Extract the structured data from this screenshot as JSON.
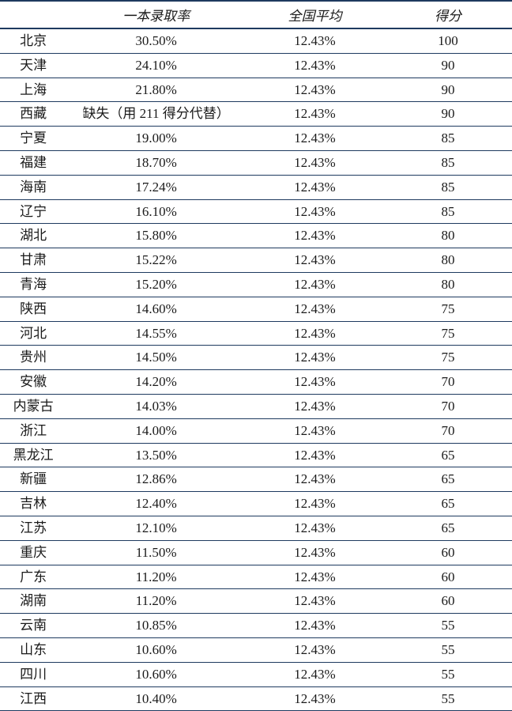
{
  "table": {
    "type": "table",
    "background_color": "#ffffff",
    "text_color": "#1a1a1a",
    "border_color": "#1e3a5f",
    "font_size": 17,
    "columns": [
      {
        "key": "province",
        "label": ""
      },
      {
        "key": "rate",
        "label": "一本录取率"
      },
      {
        "key": "avg",
        "label": "全国平均"
      },
      {
        "key": "score",
        "label": "得分"
      }
    ],
    "rows": [
      {
        "province": "北京",
        "rate": "30.50%",
        "avg": "12.43%",
        "score": "100"
      },
      {
        "province": "天津",
        "rate": "24.10%",
        "avg": "12.43%",
        "score": "90"
      },
      {
        "province": "上海",
        "rate": "21.80%",
        "avg": "12.43%",
        "score": "90"
      },
      {
        "province": "西藏",
        "rate": "缺失（用 211 得分代替）",
        "avg": "12.43%",
        "score": "90"
      },
      {
        "province": "宁夏",
        "rate": "19.00%",
        "avg": "12.43%",
        "score": "85"
      },
      {
        "province": "福建",
        "rate": "18.70%",
        "avg": "12.43%",
        "score": "85"
      },
      {
        "province": "海南",
        "rate": "17.24%",
        "avg": "12.43%",
        "score": "85"
      },
      {
        "province": "辽宁",
        "rate": "16.10%",
        "avg": "12.43%",
        "score": "85"
      },
      {
        "province": "湖北",
        "rate": "15.80%",
        "avg": "12.43%",
        "score": "80"
      },
      {
        "province": "甘肃",
        "rate": "15.22%",
        "avg": "12.43%",
        "score": "80"
      },
      {
        "province": "青海",
        "rate": "15.20%",
        "avg": "12.43%",
        "score": "80"
      },
      {
        "province": "陕西",
        "rate": "14.60%",
        "avg": "12.43%",
        "score": "75"
      },
      {
        "province": "河北",
        "rate": "14.55%",
        "avg": "12.43%",
        "score": "75"
      },
      {
        "province": "贵州",
        "rate": "14.50%",
        "avg": "12.43%",
        "score": "75"
      },
      {
        "province": "安徽",
        "rate": "14.20%",
        "avg": "12.43%",
        "score": "70"
      },
      {
        "province": "内蒙古",
        "rate": "14.03%",
        "avg": "12.43%",
        "score": "70"
      },
      {
        "province": "浙江",
        "rate": "14.00%",
        "avg": "12.43%",
        "score": "70"
      },
      {
        "province": "黑龙江",
        "rate": "13.50%",
        "avg": "12.43%",
        "score": "65"
      },
      {
        "province": "新疆",
        "rate": "12.86%",
        "avg": "12.43%",
        "score": "65"
      },
      {
        "province": "吉林",
        "rate": "12.40%",
        "avg": "12.43%",
        "score": "65"
      },
      {
        "province": "江苏",
        "rate": "12.10%",
        "avg": "12.43%",
        "score": "65"
      },
      {
        "province": "重庆",
        "rate": "11.50%",
        "avg": "12.43%",
        "score": "60"
      },
      {
        "province": "广东",
        "rate": "11.20%",
        "avg": "12.43%",
        "score": "60"
      },
      {
        "province": "湖南",
        "rate": "11.20%",
        "avg": "12.43%",
        "score": "60"
      },
      {
        "province": "云南",
        "rate": "10.85%",
        "avg": "12.43%",
        "score": "55"
      },
      {
        "province": "山东",
        "rate": "10.60%",
        "avg": "12.43%",
        "score": "55"
      },
      {
        "province": "四川",
        "rate": "10.60%",
        "avg": "12.43%",
        "score": "55"
      },
      {
        "province": "江西",
        "rate": "10.40%",
        "avg": "12.43%",
        "score": "55"
      }
    ]
  }
}
